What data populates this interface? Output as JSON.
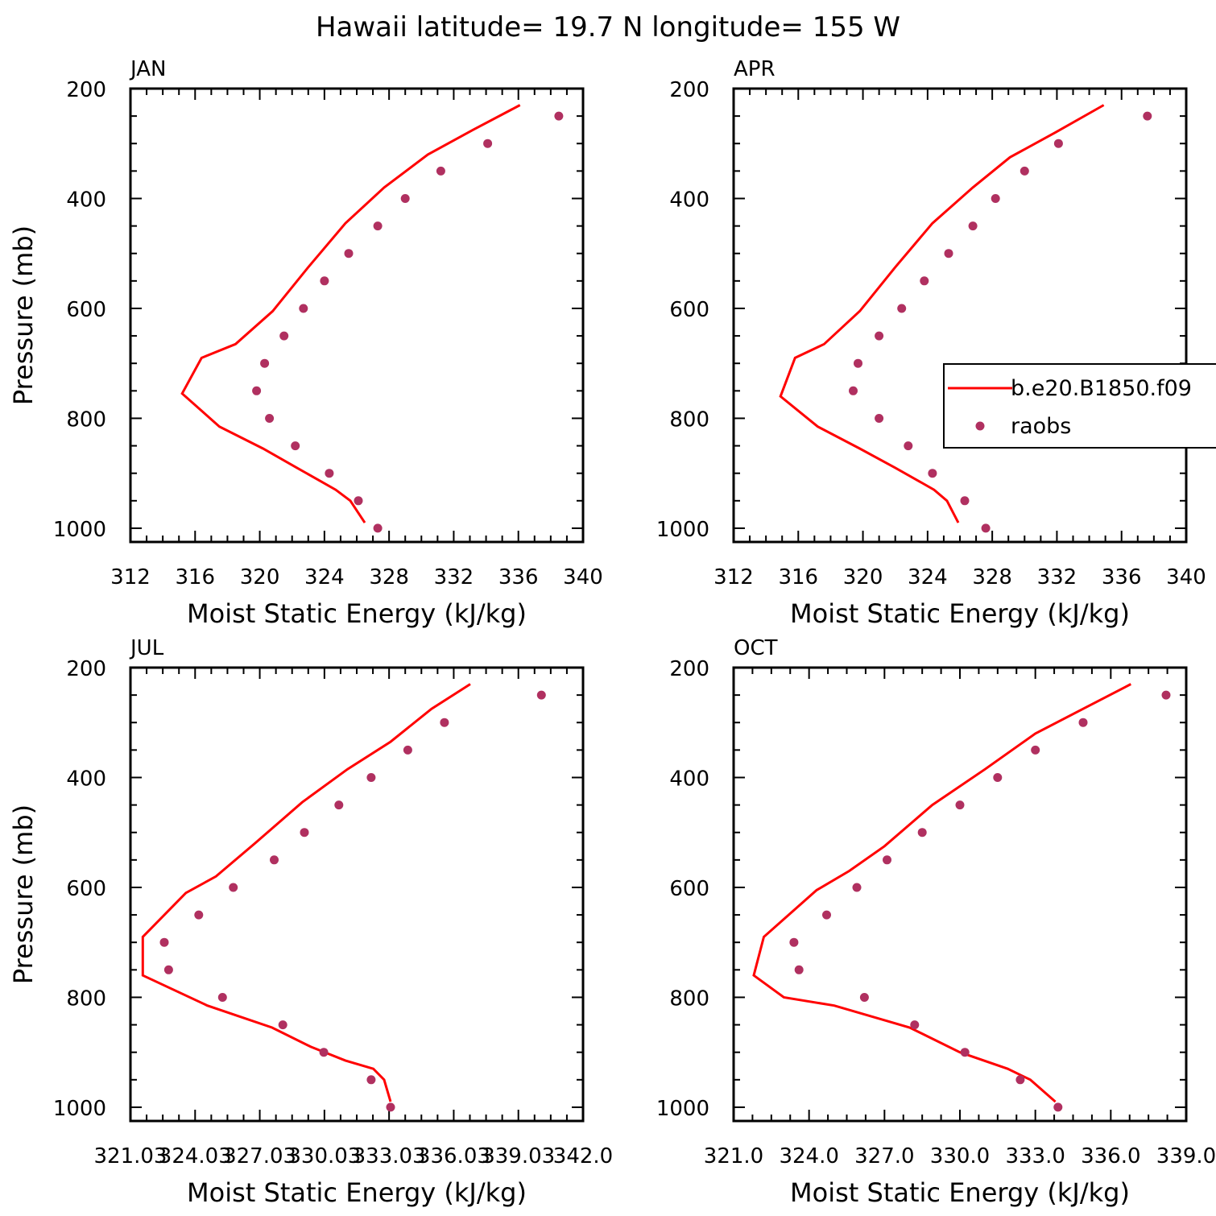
{
  "page": {
    "title": "Hawaii  latitude= 19.7 N longitude= 155 W"
  },
  "colors": {
    "model_line": "#ff0000",
    "obs_dots": "#b03060",
    "axes": "#000000"
  },
  "chart_data": [
    {
      "type": "line",
      "panel_label": "JAN",
      "xlabel": "Moist Static Energy (kJ/kg)",
      "ylabel": "Pressure (mb)",
      "xlim": [
        312,
        340
      ],
      "ylim": [
        1025,
        200
      ],
      "y_reversed": true,
      "xticks": [
        312,
        316,
        320,
        324,
        328,
        332,
        336,
        340
      ],
      "xtick_labels": [
        "312",
        "316",
        "320",
        "324",
        "328",
        "332",
        "336",
        "340"
      ],
      "yticks": [
        200,
        400,
        600,
        800,
        1000
      ],
      "ytick_labels": [
        "200",
        "400",
        "600",
        "800",
        "1000"
      ],
      "series": [
        {
          "name": "b.e20.B1850.f09",
          "kind": "line",
          "x": [
            336.1,
            333.2,
            330.4,
            327.7,
            325.3,
            323.0,
            320.8,
            318.5,
            316.4,
            315.2,
            317.5,
            320.2,
            322.3,
            323.8,
            324.7,
            325.6,
            326.5
          ],
          "y": [
            230,
            275,
            320,
            380,
            445,
            525,
            605,
            665,
            690,
            755,
            815,
            855,
            890,
            915,
            930,
            950,
            990
          ]
        },
        {
          "name": "raobs",
          "kind": "scatter",
          "x": [
            338.5,
            334.1,
            331.2,
            329.0,
            327.3,
            325.5,
            324.0,
            322.7,
            321.5,
            320.3,
            319.8,
            320.6,
            322.2,
            324.3,
            326.1,
            327.3
          ],
          "y": [
            250,
            300,
            350,
            400,
            450,
            500,
            550,
            600,
            650,
            700,
            750,
            800,
            850,
            900,
            950,
            1000
          ]
        }
      ]
    },
    {
      "type": "line",
      "panel_label": "APR",
      "xlabel": "Moist Static Energy (kJ/kg)",
      "ylabel": "",
      "xlim": [
        312,
        340
      ],
      "ylim": [
        1025,
        200
      ],
      "y_reversed": true,
      "xticks": [
        312,
        316,
        320,
        324,
        328,
        332,
        336,
        340
      ],
      "xtick_labels": [
        "312",
        "316",
        "320",
        "324",
        "328",
        "332",
        "336",
        "340"
      ],
      "yticks": [
        200,
        400,
        600,
        800,
        1000
      ],
      "ytick_labels": [
        "200",
        "400",
        "600",
        "800",
        "1000"
      ],
      "legend": {
        "placement": "right",
        "entries": [
          "b.e20.B1850.f09",
          "raobs"
        ]
      },
      "series": [
        {
          "name": "b.e20.B1850.f09",
          "kind": "line",
          "x": [
            334.9,
            331.9,
            329.1,
            326.8,
            324.3,
            322.0,
            319.8,
            317.6,
            315.8,
            314.9,
            317.2,
            319.8,
            322.0,
            323.5,
            324.4,
            325.2,
            325.9
          ],
          "y": [
            230,
            280,
            325,
            380,
            445,
            525,
            605,
            665,
            690,
            760,
            815,
            855,
            890,
            915,
            930,
            950,
            990
          ]
        },
        {
          "name": "raobs",
          "kind": "scatter",
          "x": [
            337.6,
            332.1,
            330.0,
            328.2,
            326.8,
            325.3,
            323.8,
            322.4,
            321.0,
            319.7,
            319.4,
            321.0,
            322.8,
            324.3,
            326.3,
            327.6
          ],
          "y": [
            250,
            300,
            350,
            400,
            450,
            500,
            550,
            600,
            650,
            700,
            750,
            800,
            850,
            900,
            950,
            1000
          ]
        }
      ]
    },
    {
      "type": "line",
      "panel_label": "JUL",
      "xlabel": "Moist Static Energy (kJ/kg)",
      "ylabel": "Pressure (mb)",
      "xlim": [
        321.03,
        342.03
      ],
      "ylim": [
        1025,
        200
      ],
      "y_reversed": true,
      "xticks": [
        321.03,
        324.03,
        327.03,
        330.03,
        333.03,
        336.03,
        339.03,
        342.03
      ],
      "xtick_labels": [
        "321.03",
        "324.03",
        "327.03",
        "330.03",
        "333.03",
        "336.03",
        "339.03",
        "342.0"
      ],
      "yticks": [
        200,
        400,
        600,
        800,
        1000
      ],
      "ytick_labels": [
        "200",
        "400",
        "600",
        "800",
        "1000"
      ],
      "series": [
        {
          "name": "b.e20.B1850.f09",
          "kind": "line",
          "x": [
            336.8,
            335.0,
            333.1,
            331.1,
            329.0,
            326.8,
            325.0,
            323.6,
            321.6,
            321.6,
            324.6,
            327.6,
            329.4,
            331.0,
            332.3,
            332.8,
            333.1
          ],
          "y": [
            230,
            275,
            335,
            385,
            445,
            520,
            580,
            610,
            690,
            760,
            815,
            855,
            890,
            915,
            930,
            950,
            990
          ]
        },
        {
          "name": "raobs",
          "kind": "scatter",
          "x": [
            340.1,
            335.6,
            333.9,
            332.2,
            330.7,
            329.1,
            327.7,
            325.8,
            324.2,
            322.6,
            322.8,
            325.3,
            328.1,
            330.0,
            332.2,
            333.1
          ],
          "y": [
            250,
            300,
            350,
            400,
            450,
            500,
            550,
            600,
            650,
            700,
            750,
            800,
            850,
            900,
            950,
            1000
          ]
        }
      ]
    },
    {
      "type": "line",
      "panel_label": "OCT",
      "xlabel": "Moist Static Energy (kJ/kg)",
      "ylabel": "",
      "xlim": [
        321,
        339
      ],
      "ylim": [
        1025,
        200
      ],
      "y_reversed": true,
      "xticks": [
        321,
        324,
        327,
        330,
        333,
        336,
        339
      ],
      "xtick_labels": [
        "321.0",
        "324.0",
        "327.0",
        "330.0",
        "333.0",
        "336.0",
        "339.0"
      ],
      "yticks": [
        200,
        400,
        600,
        800,
        1000
      ],
      "ytick_labels": [
        "200",
        "400",
        "600",
        "800",
        "1000"
      ],
      "series": [
        {
          "name": "b.e20.B1850.f09",
          "kind": "line",
          "x": [
            336.8,
            334.9,
            333.0,
            331.0,
            328.9,
            327.0,
            325.6,
            324.3,
            322.2,
            321.8,
            323.0,
            325.0,
            328.0,
            330.0,
            331.9,
            332.8,
            333.8
          ],
          "y": [
            230,
            275,
            320,
            385,
            450,
            525,
            570,
            605,
            690,
            760,
            800,
            815,
            855,
            900,
            930,
            950,
            990
          ]
        },
        {
          "name": "raobs",
          "kind": "scatter",
          "x": [
            338.2,
            334.9,
            333.0,
            331.5,
            330.0,
            328.5,
            327.1,
            325.9,
            324.7,
            323.4,
            323.6,
            326.2,
            328.2,
            330.2,
            332.4,
            333.9
          ],
          "y": [
            250,
            300,
            350,
            400,
            450,
            500,
            550,
            600,
            650,
            700,
            750,
            800,
            850,
            900,
            950,
            1000
          ]
        }
      ]
    }
  ]
}
